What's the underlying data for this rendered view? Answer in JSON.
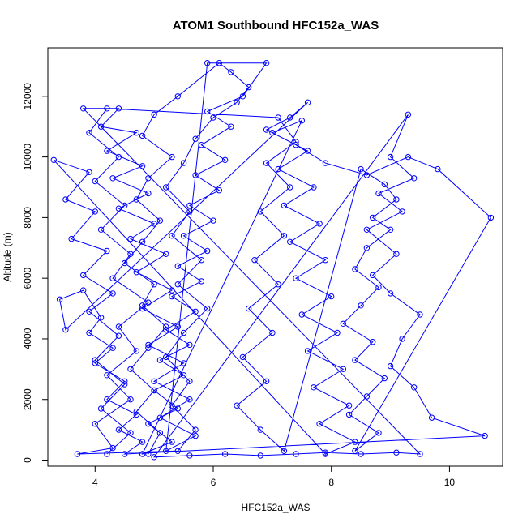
{
  "chart_data": {
    "type": "scatter",
    "title": "ATOM1 Southbound HFC152a_WAS",
    "xlabel": "HFC152a_WAS",
    "ylabel": "Altitude (m)",
    "xlim": [
      3.2,
      10.9
    ],
    "ylim": [
      -200,
      13600
    ],
    "xticks": [
      4,
      6,
      8,
      10
    ],
    "yticks": [
      0,
      2000,
      4000,
      6000,
      8000,
      10000,
      12000
    ],
    "grid": false,
    "color": "#0000ff",
    "marker": "open-circle",
    "connected": true,
    "series": [
      {
        "values": [
          [
            4.9,
            200
          ],
          [
            5.1,
            900
          ],
          [
            4.7,
            1600
          ],
          [
            5.0,
            2300
          ],
          [
            4.6,
            3000
          ],
          [
            4.9,
            3700
          ],
          [
            5.2,
            4400
          ],
          [
            4.8,
            5100
          ],
          [
            5.0,
            5800
          ],
          [
            4.5,
            6500
          ],
          [
            4.8,
            7200
          ],
          [
            5.1,
            7900
          ],
          [
            4.7,
            8600
          ],
          [
            4.9,
            9300
          ],
          [
            5.3,
            10000
          ],
          [
            4.8,
            10700
          ],
          [
            5.0,
            11400
          ],
          [
            5.4,
            12000
          ],
          [
            6.1,
            13100
          ],
          [
            6.3,
            12800
          ],
          [
            6.6,
            12300
          ],
          [
            6.4,
            11800
          ],
          [
            6.0,
            11300
          ],
          [
            5.7,
            10600
          ],
          [
            5.5,
            9800
          ],
          [
            5.2,
            9000
          ],
          [
            5.6,
            8200
          ],
          [
            5.3,
            7400
          ],
          [
            5.8,
            6600
          ],
          [
            5.4,
            5800
          ],
          [
            5.9,
            5000
          ],
          [
            5.5,
            4200
          ],
          [
            5.2,
            3400
          ],
          [
            5.6,
            2600
          ],
          [
            5.3,
            1800
          ],
          [
            5.7,
            1000
          ],
          [
            5.4,
            300
          ],
          [
            3.7,
            200
          ],
          [
            4.3,
            400
          ],
          [
            4.0,
            1200
          ],
          [
            4.6,
            2000
          ],
          [
            4.2,
            2800
          ],
          [
            4.7,
            3600
          ],
          [
            4.4,
            4400
          ],
          [
            4.9,
            5200
          ],
          [
            4.3,
            6000
          ],
          [
            4.6,
            6800
          ],
          [
            4.1,
            7600
          ],
          [
            4.5,
            8400
          ],
          [
            4.0,
            9200
          ],
          [
            4.4,
            10000
          ],
          [
            3.9,
            10800
          ],
          [
            4.2,
            11600
          ],
          [
            7.1,
            11300
          ],
          [
            7.4,
            10500
          ],
          [
            6.9,
            9800
          ],
          [
            7.3,
            9000
          ],
          [
            6.8,
            8200
          ],
          [
            7.2,
            7400
          ],
          [
            6.7,
            6600
          ],
          [
            7.1,
            5800
          ],
          [
            6.6,
            5000
          ],
          [
            7.0,
            4200
          ],
          [
            6.5,
            3400
          ],
          [
            6.9,
            2600
          ],
          [
            6.4,
            1800
          ],
          [
            6.8,
            1000
          ],
          [
            7.2,
            300
          ],
          [
            8.5,
            9600
          ],
          [
            8.9,
            9100
          ],
          [
            9.1,
            8600
          ],
          [
            8.7,
            8000
          ],
          [
            9.0,
            7600
          ],
          [
            8.6,
            7000
          ],
          [
            8.4,
            6300
          ],
          [
            8.8,
            5700
          ],
          [
            8.5,
            5100
          ],
          [
            8.2,
            4500
          ],
          [
            8.7,
            3900
          ],
          [
            8.4,
            3300
          ],
          [
            8.9,
            2700
          ],
          [
            8.6,
            2100
          ],
          [
            8.3,
            1500
          ],
          [
            8.8,
            900
          ],
          [
            8.4,
            300
          ],
          [
            10.7,
            8000
          ],
          [
            9.8,
            9600
          ],
          [
            9.3,
            10000
          ],
          [
            8.6,
            9400
          ],
          [
            7.9,
            9800
          ],
          [
            7.4,
            10400
          ],
          [
            6.9,
            10900
          ],
          [
            7.3,
            11300
          ],
          [
            7.6,
            11800
          ],
          [
            3.5,
            4300
          ],
          [
            3.4,
            5300
          ],
          [
            3.8,
            5600
          ],
          [
            4.1,
            4700
          ],
          [
            3.9,
            4200
          ],
          [
            4.3,
            3700
          ],
          [
            4.0,
            3200
          ],
          [
            4.5,
            2600
          ],
          [
            4.2,
            2000
          ],
          [
            4.7,
            1500
          ],
          [
            4.4,
            1000
          ],
          [
            4.8,
            600
          ],
          [
            4.5,
            200
          ],
          [
            10.6,
            800
          ],
          [
            9.7,
            1400
          ],
          [
            9.4,
            2400
          ],
          [
            9.0,
            3100
          ],
          [
            9.2,
            4000
          ],
          [
            9.5,
            4800
          ],
          [
            9.0,
            5500
          ],
          [
            8.7,
            6100
          ],
          [
            9.1,
            6800
          ],
          [
            8.6,
            7600
          ],
          [
            9.2,
            8200
          ],
          [
            8.8,
            8800
          ],
          [
            9.4,
            9300
          ],
          [
            9.0,
            10000
          ],
          [
            9.3,
            11400
          ],
          [
            5.0,
            100
          ],
          [
            5.6,
            150
          ],
          [
            6.2,
            200
          ],
          [
            6.8,
            150
          ],
          [
            7.4,
            200
          ],
          [
            7.9,
            250
          ],
          [
            8.5,
            200
          ],
          [
            9.1,
            250
          ],
          [
            9.5,
            200
          ],
          [
            3.8,
            11600
          ],
          [
            4.4,
            11600
          ],
          [
            4.1,
            11000
          ],
          [
            4.7,
            10800
          ],
          [
            4.2,
            10200
          ],
          [
            4.8,
            9700
          ],
          [
            4.3,
            9300
          ],
          [
            4.9,
            8800
          ],
          [
            4.4,
            8300
          ],
          [
            5.0,
            7800
          ],
          [
            4.6,
            7300
          ],
          [
            5.2,
            6800
          ],
          [
            4.7,
            6200
          ],
          [
            5.3,
            5600
          ],
          [
            4.8,
            5000
          ],
          [
            5.4,
            4400
          ],
          [
            4.9,
            3800
          ],
          [
            5.5,
            3200
          ],
          [
            5.0,
            2600
          ],
          [
            5.6,
            2000
          ],
          [
            5.1,
            1400
          ],
          [
            5.7,
            800
          ],
          [
            5.2,
            300
          ],
          [
            5.9,
            13100
          ],
          [
            6.9,
            13100
          ],
          [
            6.5,
            12000
          ],
          [
            5.9,
            11500
          ],
          [
            6.3,
            11000
          ],
          [
            5.8,
            10400
          ],
          [
            6.2,
            9900
          ],
          [
            5.7,
            9400
          ],
          [
            6.1,
            8900
          ],
          [
            5.6,
            8400
          ],
          [
            6.0,
            7900
          ],
          [
            5.5,
            7400
          ],
          [
            5.9,
            6900
          ],
          [
            5.4,
            6400
          ],
          [
            5.8,
            5900
          ],
          [
            5.3,
            5400
          ],
          [
            5.7,
            4900
          ],
          [
            5.2,
            4300
          ],
          [
            5.6,
            3800
          ],
          [
            5.1,
            3300
          ],
          [
            5.5,
            2800
          ],
          [
            5.0,
            2300
          ],
          [
            5.4,
            1700
          ],
          [
            4.9,
            1200
          ],
          [
            5.3,
            600
          ],
          [
            4.8,
            200
          ],
          [
            7.5,
            11200
          ],
          [
            7.0,
            10800
          ],
          [
            7.6,
            10200
          ],
          [
            7.1,
            9600
          ],
          [
            7.7,
            9000
          ],
          [
            7.2,
            8400
          ],
          [
            7.8,
            7800
          ],
          [
            7.3,
            7200
          ],
          [
            7.9,
            6600
          ],
          [
            7.4,
            6000
          ],
          [
            8.0,
            5400
          ],
          [
            7.5,
            4800
          ],
          [
            8.1,
            4200
          ],
          [
            7.6,
            3600
          ],
          [
            8.2,
            3000
          ],
          [
            7.7,
            2400
          ],
          [
            8.3,
            1800
          ],
          [
            7.8,
            1200
          ],
          [
            8.4,
            600
          ],
          [
            7.9,
            200
          ],
          [
            3.3,
            9900
          ],
          [
            3.9,
            9500
          ],
          [
            3.5,
            8600
          ],
          [
            4.0,
            8200
          ],
          [
            3.6,
            7300
          ],
          [
            4.2,
            6900
          ],
          [
            3.8,
            6100
          ],
          [
            4.3,
            5500
          ],
          [
            3.9,
            4900
          ],
          [
            4.4,
            4100
          ],
          [
            4.0,
            3300
          ],
          [
            4.5,
            2500
          ],
          [
            4.1,
            1700
          ],
          [
            4.6,
            900
          ],
          [
            4.2,
            200
          ]
        ]
      }
    ]
  }
}
